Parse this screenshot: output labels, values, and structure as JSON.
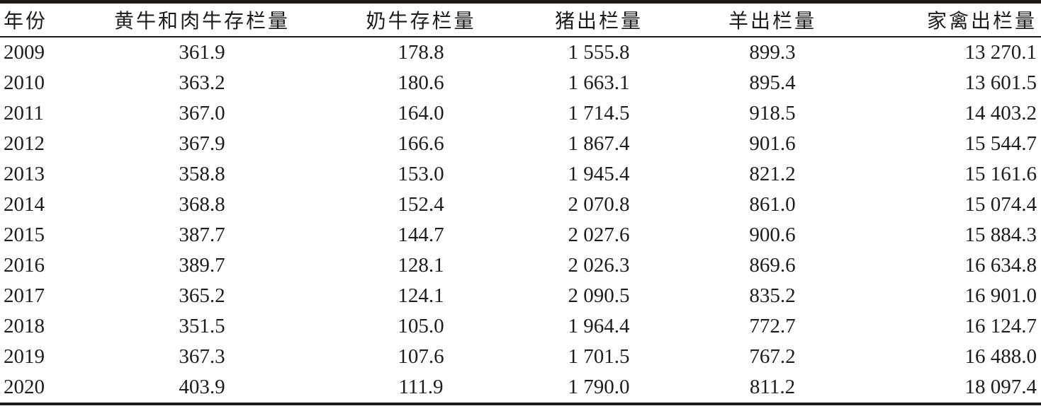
{
  "table": {
    "columns": [
      {
        "label": "年份"
      },
      {
        "label": "黄牛和肉牛存栏量"
      },
      {
        "label": "奶牛存栏量"
      },
      {
        "label": "猪出栏量"
      },
      {
        "label": "羊出栏量"
      },
      {
        "label": "家禽出栏量"
      }
    ],
    "rows": [
      [
        "2009",
        "361.9",
        "178.8",
        "1 555.8",
        "899.3",
        "13 270.1"
      ],
      [
        "2010",
        "363.2",
        "180.6",
        "1 663.1",
        "895.4",
        "13 601.5"
      ],
      [
        "2011",
        "367.0",
        "164.0",
        "1 714.5",
        "918.5",
        "14 403.2"
      ],
      [
        "2012",
        "367.9",
        "166.6",
        "1 867.4",
        "901.6",
        "15 544.7"
      ],
      [
        "2013",
        "358.8",
        "153.0",
        "1 945.4",
        "821.2",
        "15 161.6"
      ],
      [
        "2014",
        "368.8",
        "152.4",
        "2 070.8",
        "861.0",
        "15 074.4"
      ],
      [
        "2015",
        "387.7",
        "144.7",
        "2 027.6",
        "900.6",
        "15 884.3"
      ],
      [
        "2016",
        "389.7",
        "128.1",
        "2 026.3",
        "869.6",
        "16 634.8"
      ],
      [
        "2017",
        "365.2",
        "124.1",
        "2 090.5",
        "835.2",
        "16 901.0"
      ],
      [
        "2018",
        "351.5",
        "105.0",
        "1 964.4",
        "772.7",
        "16 124.7"
      ],
      [
        "2019",
        "367.3",
        "107.6",
        "1 701.5",
        "767.2",
        "16 488.0"
      ],
      [
        "2020",
        "403.9",
        "111.9",
        "1 790.0",
        "811.2",
        "18 097.4"
      ]
    ]
  },
  "colors": {
    "text": "#1c1c1c",
    "rule": "#1e1a17",
    "background": "#ffffff"
  }
}
